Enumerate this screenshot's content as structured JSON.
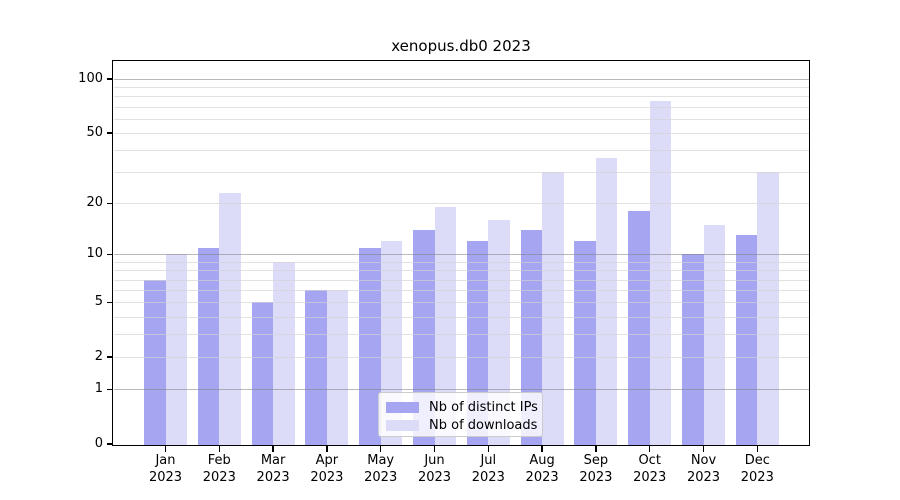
{
  "figure": {
    "title": "xenopus.db0 2023",
    "background_color": "#ffffff",
    "axis_color": "#000000",
    "major_grid_color": "#a8a8a8",
    "minor_grid_color": "#e6e6e6"
  },
  "chart_data": {
    "type": "bar",
    "title": "xenopus.db0 2023",
    "xlabel": "",
    "ylabel": "",
    "y_scale": "log1p (ticks at 0,1,2,5,10,20,50,100)",
    "ylim": [
      0,
      126
    ],
    "grid": "horizontal, major and minor, drawn over bars",
    "legend_position": "lower center inside plot",
    "categories": [
      "Jan",
      "Feb",
      "Mar",
      "Apr",
      "May",
      "Jun",
      "Jul",
      "Aug",
      "Sep",
      "Oct",
      "Nov",
      "Dec"
    ],
    "category_year": "2023",
    "xtick_labels_line2": "2023",
    "series": [
      {
        "name": "Nb of distinct IPs",
        "color": "#a5a5f2",
        "values": [
          7,
          11,
          5,
          6,
          11,
          14,
          12,
          14,
          12,
          18,
          10,
          13
        ]
      },
      {
        "name": "Nb of downloads",
        "color": "#dcdcf8",
        "values": [
          10,
          23,
          9,
          6,
          12,
          19,
          16,
          30,
          36,
          76,
          15,
          30
        ]
      }
    ],
    "yticks": [
      0,
      1,
      2,
      5,
      10,
      20,
      50,
      100
    ],
    "ytick_labels": [
      "0",
      "1",
      "2",
      "5",
      "10",
      "20",
      "50",
      "100"
    ],
    "major_gridline_values": [
      1,
      10,
      100
    ],
    "light_gridline_values": [
      2,
      5,
      20,
      50
    ],
    "minor_gridline_values": [
      3,
      4,
      6,
      7,
      8,
      9,
      30,
      40,
      60,
      70,
      80,
      90
    ]
  },
  "legend": {
    "entries": [
      "Nb of distinct IPs",
      "Nb of downloads"
    ]
  }
}
